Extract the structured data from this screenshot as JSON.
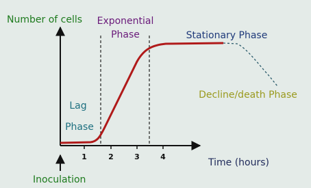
{
  "axis": {
    "y_label": "Number of cells",
    "x_label": "Time (hours)",
    "x_ticks": [
      "1",
      "2",
      "3",
      "4"
    ],
    "origin_label": "Inoculation"
  },
  "phases": {
    "lag": [
      "Lag",
      "Phase"
    ],
    "exponential": [
      "Exponential",
      "Phase"
    ],
    "stationary": "Stationary Phase",
    "decline": "Decline/death Phase"
  }
}
